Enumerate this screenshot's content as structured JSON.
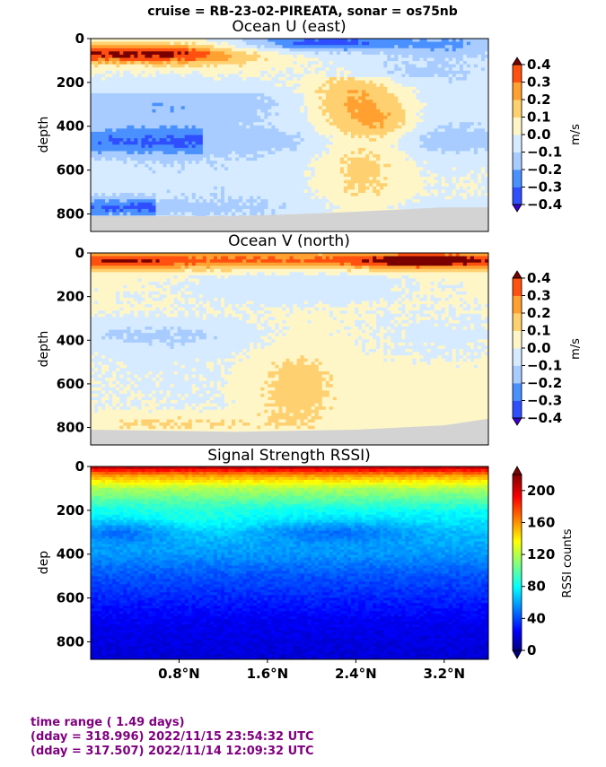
{
  "suptitle": "cruise = RB-23-02-PIREATA,  sonar = os75nb",
  "footer": {
    "line1": "time range ( 1.49 days)",
    "line2": "(dday = 318.996) 2022/11/15 23:54:32 UTC",
    "line3": "(dday = 317.507) 2022/11/14 12:09:32 UTC"
  },
  "chart_data": [
    {
      "type": "heatmap",
      "title": "Ocean U (east)",
      "ylabel": "depth",
      "colorbar_label": "m/s",
      "colormap": "jet (discrete)",
      "levels": [
        -0.4,
        -0.3,
        -0.2,
        -0.1,
        0.0,
        0.1,
        0.2,
        0.3,
        0.4
      ],
      "colorbar_ticks": [
        "0.4",
        "0.3",
        "0.2",
        "0.1",
        "0.0",
        "−0.1",
        "−0.2",
        "−0.3",
        "−0.4"
      ],
      "y_ticks": [
        "0",
        "200",
        "400",
        "600",
        "800"
      ],
      "ylim": [
        880,
        0
      ],
      "xlim": [
        0.0,
        3.6
      ],
      "x_ticks": [
        0.8,
        1.6,
        2.4,
        3.2
      ],
      "bottom_mask_color": "#d3d3d3",
      "bottom_mask_depth": [
        [
          "0.0",
          810
        ],
        [
          "1.3",
          810
        ],
        [
          "1.9",
          800
        ],
        [
          "2.4",
          790
        ],
        [
          "3.2",
          770
        ],
        [
          "3.6",
          770
        ]
      ],
      "features": [
        {
          "lat_range": [
            0.0,
            1.0
          ],
          "depth_range": [
            20,
            120
          ],
          "value": 0.4
        },
        {
          "lat_range": [
            1.5,
            2.6
          ],
          "depth_range": [
            0,
            60
          ],
          "value": -0.3
        },
        {
          "lat_range": [
            2.0,
            2.9
          ],
          "depth_range": [
            180,
            800
          ],
          "value": 0.15
        },
        {
          "lat_range": [
            0.0,
            1.0
          ],
          "depth_range": [
            420,
            520
          ],
          "value": -0.25
        },
        {
          "lat_range": [
            0.0,
            1.2
          ],
          "depth_range": [
            250,
            800
          ],
          "value": -0.15
        }
      ]
    },
    {
      "type": "heatmap",
      "title": "Ocean V (north)",
      "ylabel": "depth",
      "colorbar_label": "m/s",
      "colormap": "jet (discrete)",
      "levels": [
        -0.4,
        -0.3,
        -0.2,
        -0.1,
        0.0,
        0.1,
        0.2,
        0.3,
        0.4
      ],
      "colorbar_ticks": [
        "0.4",
        "0.3",
        "0.2",
        "0.1",
        "0.0",
        "−0.1",
        "−0.2",
        "−0.3",
        "−0.4"
      ],
      "y_ticks": [
        "0",
        "200",
        "400",
        "600",
        "800"
      ],
      "ylim": [
        880,
        0
      ],
      "xlim": [
        0.0,
        3.6
      ],
      "x_ticks": [
        0.8,
        1.6,
        2.4,
        3.2
      ],
      "bottom_mask_color": "#d3d3d3",
      "bottom_mask_depth": [
        [
          "0.0",
          810
        ],
        [
          "1.3",
          820
        ],
        [
          "2.4",
          810
        ],
        [
          "3.2",
          790
        ],
        [
          "3.6",
          760
        ]
      ],
      "features": [
        {
          "lat_range": [
            0.0,
            3.6
          ],
          "depth_range": [
            0,
            70
          ],
          "value": 0.3
        },
        {
          "lat_range": [
            2.6,
            3.4
          ],
          "depth_range": [
            0,
            60
          ],
          "value": 0.4
        },
        {
          "lat_range": [
            1.6,
            2.3
          ],
          "depth_range": [
            480,
            800
          ],
          "value": 0.15
        },
        {
          "lat_range": [
            0.0,
            1.0
          ],
          "depth_range": [
            300,
            800
          ],
          "value": -0.05
        }
      ]
    },
    {
      "type": "heatmap",
      "title": "Signal Strength RSSI)",
      "ylabel": "dep",
      "colorbar_label": "RSSI counts",
      "colormap": "jet",
      "vmin": 0,
      "vmax": 220,
      "colorbar_ticks": [
        "200",
        "160",
        "120",
        "80",
        "40",
        "0"
      ],
      "y_ticks": [
        "0",
        "200",
        "400",
        "600",
        "800"
      ],
      "ylim": [
        880,
        0
      ],
      "xlim": [
        0.0,
        3.6
      ],
      "x_ticks": [
        0.8,
        1.6,
        2.4,
        3.2
      ],
      "x_tick_labels": [
        "0.8°N",
        "1.6°N",
        "2.4°N",
        "3.2°N"
      ],
      "depth_profile": [
        [
          0,
          210
        ],
        [
          40,
          160
        ],
        [
          100,
          120
        ],
        [
          200,
          85
        ],
        [
          300,
          70
        ],
        [
          400,
          60
        ],
        [
          500,
          45
        ],
        [
          600,
          35
        ],
        [
          700,
          25
        ],
        [
          880,
          18
        ]
      ]
    }
  ]
}
